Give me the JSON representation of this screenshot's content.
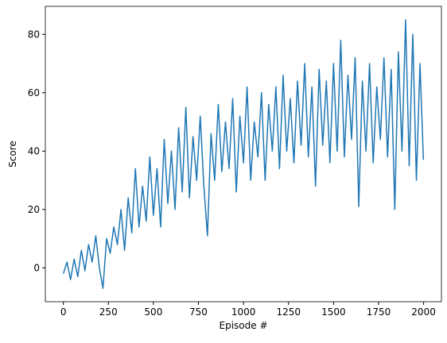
{
  "chart_data": {
    "type": "line",
    "xlabel": "Episode #",
    "ylabel": "Score",
    "x": [
      0,
      20,
      40,
      60,
      80,
      100,
      120,
      140,
      160,
      180,
      200,
      220,
      240,
      260,
      280,
      300,
      320,
      340,
      360,
      380,
      400,
      420,
      440,
      460,
      480,
      500,
      520,
      540,
      560,
      580,
      600,
      620,
      640,
      660,
      680,
      700,
      720,
      740,
      760,
      780,
      800,
      820,
      840,
      860,
      880,
      900,
      920,
      940,
      960,
      980,
      1000,
      1020,
      1040,
      1060,
      1080,
      1100,
      1120,
      1140,
      1160,
      1180,
      1200,
      1220,
      1240,
      1260,
      1280,
      1300,
      1320,
      1340,
      1360,
      1380,
      1400,
      1420,
      1440,
      1460,
      1480,
      1500,
      1520,
      1540,
      1560,
      1580,
      1600,
      1620,
      1640,
      1660,
      1680,
      1700,
      1720,
      1740,
      1760,
      1780,
      1800,
      1820,
      1840,
      1860,
      1880,
      1900,
      1920,
      1940,
      1960,
      1980,
      1999
    ],
    "series": [
      {
        "color": "#1f77b4",
        "values": [
          -2,
          2,
          -4,
          3,
          -3,
          6,
          -1,
          8,
          2,
          11,
          0,
          -7,
          10,
          5,
          14,
          8,
          20,
          6,
          24,
          12,
          34,
          14,
          28,
          16,
          38,
          18,
          34,
          14,
          44,
          22,
          40,
          20,
          48,
          26,
          55,
          24,
          45,
          30,
          52,
          28,
          11,
          46,
          30,
          56,
          33,
          50,
          34,
          58,
          26,
          52,
          36,
          62,
          30,
          50,
          38,
          60,
          30,
          56,
          40,
          62,
          34,
          66,
          40,
          58,
          36,
          64,
          42,
          70,
          38,
          62,
          28,
          68,
          42,
          64,
          36,
          70,
          40,
          78,
          38,
          66,
          44,
          72,
          21,
          64,
          40,
          70,
          36,
          62,
          44,
          72,
          38,
          68,
          20,
          74,
          40,
          85,
          35,
          80,
          30,
          70,
          37
        ]
      }
    ],
    "xlim": [
      -100,
      2099
    ],
    "ylim": [
      -11.6,
      89.6
    ],
    "xticks": [
      0,
      250,
      500,
      750,
      1000,
      1250,
      1500,
      1750,
      2000
    ],
    "yticks": [
      0,
      20,
      40,
      60,
      80
    ]
  }
}
